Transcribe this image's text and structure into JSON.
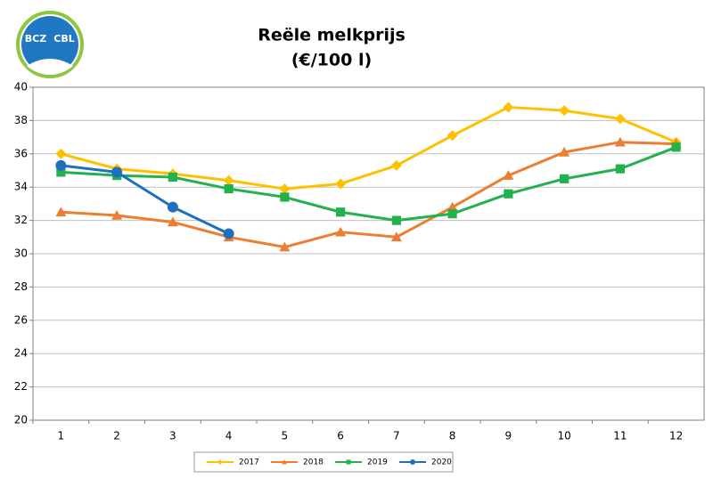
{
  "logo": {
    "left": "BCZ",
    "right": "CBL"
  },
  "chart_data": {
    "type": "line",
    "title": "Reële melkprijs",
    "subtitle": "(€/100 l)",
    "categories": [
      "1",
      "2",
      "3",
      "4",
      "5",
      "6",
      "7",
      "8",
      "9",
      "10",
      "11",
      "12"
    ],
    "series": [
      {
        "name": "2017",
        "color": "#FFC000",
        "marker": "diamond",
        "values": [
          36.0,
          35.1,
          34.8,
          34.4,
          33.9,
          34.2,
          35.3,
          37.1,
          38.8,
          38.6,
          38.1,
          36.7
        ]
      },
      {
        "name": "2018",
        "color": "#ED7D31",
        "marker": "triangle",
        "values": [
          32.5,
          32.3,
          31.9,
          31.0,
          30.4,
          31.3,
          31.0,
          32.8,
          34.7,
          36.1,
          36.7,
          36.6
        ]
      },
      {
        "name": "2019",
        "color": "#22B14C",
        "marker": "square",
        "values": [
          34.9,
          34.7,
          34.6,
          33.9,
          33.4,
          32.5,
          32.0,
          32.4,
          33.6,
          34.5,
          35.1,
          36.4
        ]
      },
      {
        "name": "2020",
        "color": "#1F6FBF",
        "marker": "circle",
        "values": [
          35.3,
          34.9,
          32.8,
          31.2,
          null,
          null,
          null,
          null,
          null,
          null,
          null,
          null
        ]
      }
    ],
    "ylim": [
      20,
      40
    ],
    "yticks": [
      20,
      22,
      24,
      26,
      28,
      30,
      32,
      34,
      36,
      38,
      40
    ],
    "grid": true,
    "legend": "bottom"
  }
}
